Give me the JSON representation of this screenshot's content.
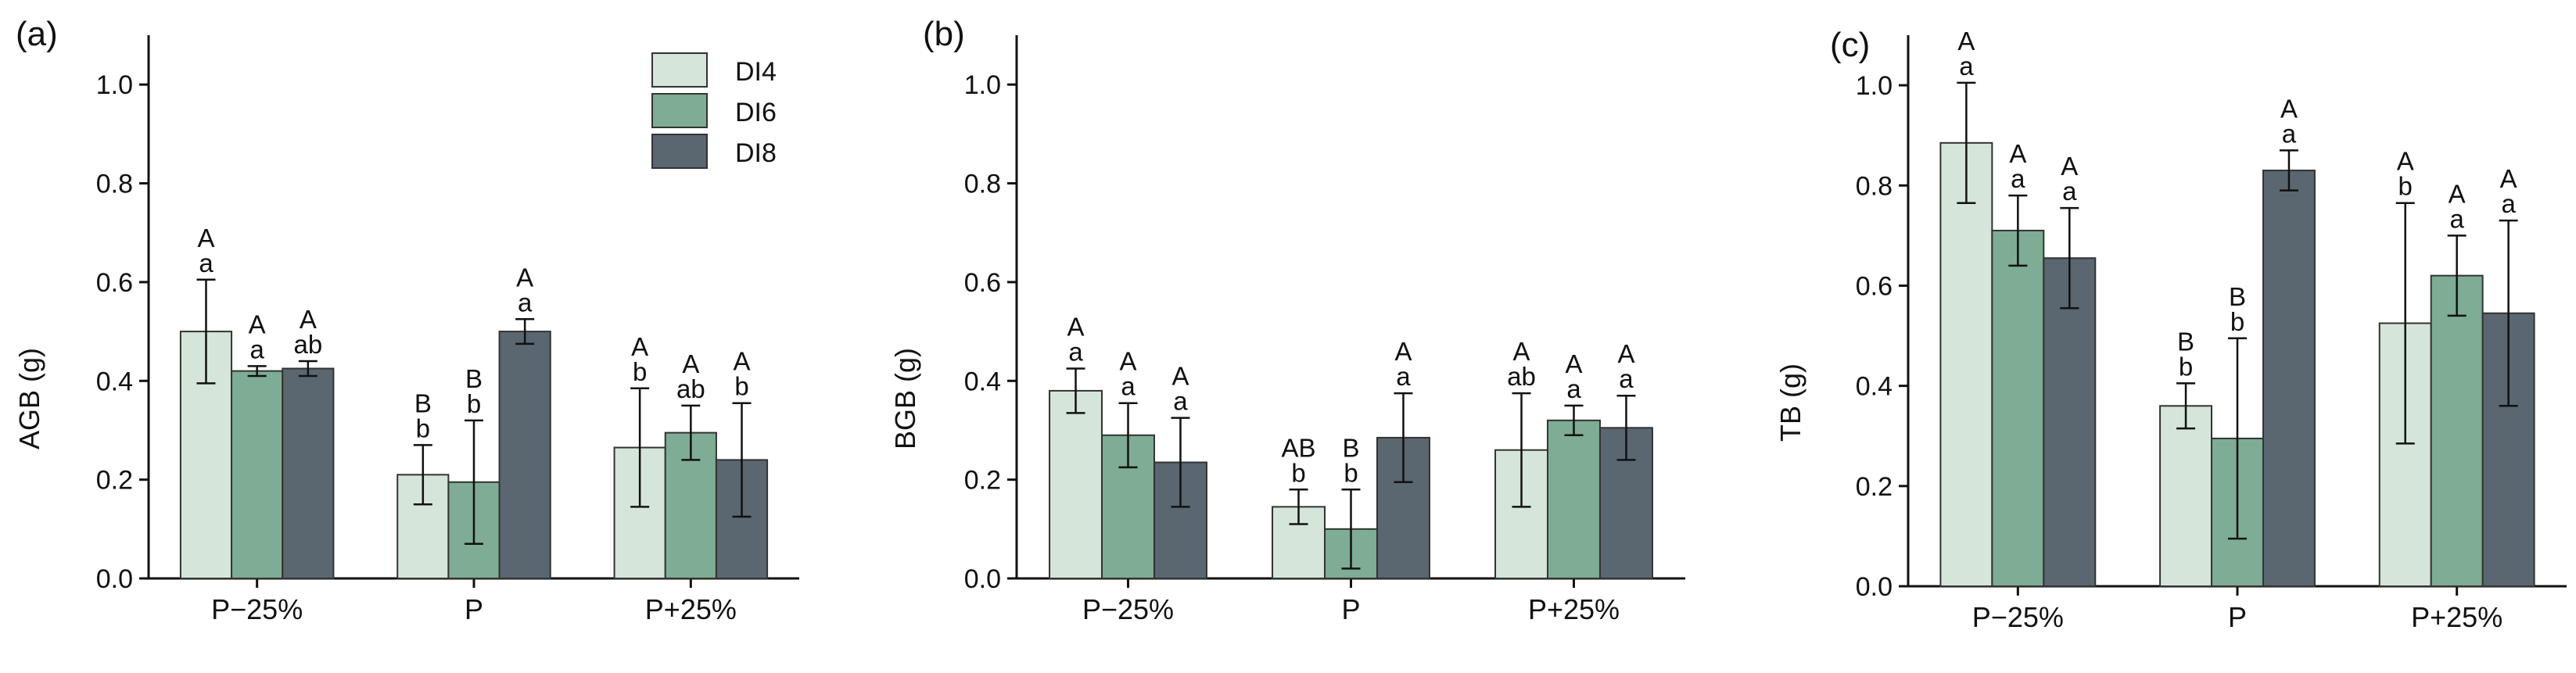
{
  "colors": {
    "DI4": "#d5e5d9",
    "DI6": "#7eac94",
    "DI8": "#5a6670"
  },
  "legend": [
    "DI4",
    "DI6",
    "DI8"
  ],
  "chart_data": [
    {
      "panel": "(a)",
      "type": "bar",
      "ylabel": "AGB (g)",
      "ylim": [
        0,
        1.1
      ],
      "yticks": [
        "0.0",
        "0.2",
        "0.4",
        "0.6",
        "0.8",
        "1.0"
      ],
      "categories": [
        "P−25%",
        "P",
        "P+25%"
      ],
      "series": [
        {
          "name": "DI4",
          "values": [
            0.5,
            0.21,
            0.265
          ],
          "errors": [
            0.105,
            0.06,
            0.12
          ],
          "labels": [
            [
              "A",
              "a"
            ],
            [
              "B",
              "b"
            ],
            [
              "A",
              "b"
            ]
          ]
        },
        {
          "name": "DI6",
          "values": [
            0.42,
            0.195,
            0.295
          ],
          "errors": [
            0.01,
            0.125,
            0.055
          ],
          "labels": [
            [
              "A",
              "a"
            ],
            [
              "B",
              "b"
            ],
            [
              "A",
              "ab"
            ]
          ]
        },
        {
          "name": "DI8",
          "values": [
            0.425,
            0.5,
            0.24
          ],
          "errors": [
            0.015,
            0.025,
            0.115
          ],
          "labels": [
            [
              "A",
              "ab"
            ],
            [
              "A",
              "a"
            ],
            [
              "A",
              "b"
            ]
          ]
        }
      ]
    },
    {
      "panel": "(b)",
      "type": "bar",
      "ylabel": "BGB (g)",
      "ylim": [
        0,
        1.1
      ],
      "yticks": [
        "0.0",
        "0.2",
        "0.4",
        "0.6",
        "0.8",
        "1.0"
      ],
      "categories": [
        "P−25%",
        "P",
        "P+25%"
      ],
      "series": [
        {
          "name": "DI4",
          "values": [
            0.38,
            0.145,
            0.26
          ],
          "errors": [
            0.045,
            0.035,
            0.115
          ],
          "labels": [
            [
              "A",
              "a"
            ],
            [
              "AB",
              "b"
            ],
            [
              "A",
              "ab"
            ]
          ]
        },
        {
          "name": "DI6",
          "values": [
            0.29,
            0.1,
            0.32
          ],
          "errors": [
            0.065,
            0.08,
            0.03
          ],
          "labels": [
            [
              "A",
              "a"
            ],
            [
              "B",
              "b"
            ],
            [
              "A",
              "a"
            ]
          ]
        },
        {
          "name": "DI8",
          "values": [
            0.235,
            0.285,
            0.305
          ],
          "errors": [
            0.09,
            0.09,
            0.065
          ],
          "labels": [
            [
              "A",
              "a"
            ],
            [
              "A",
              "a"
            ],
            [
              "A",
              "a"
            ]
          ]
        }
      ]
    },
    {
      "panel": "(c)",
      "type": "bar",
      "ylabel": "TB (g)",
      "ylim": [
        0,
        1.1
      ],
      "yticks": [
        "0.0",
        "0.2",
        "0.4",
        "0.6",
        "0.8",
        "1.0"
      ],
      "categories": [
        "P−25%",
        "P",
        "P+25%"
      ],
      "series": [
        {
          "name": "DI4",
          "values": [
            0.885,
            0.36,
            0.525
          ],
          "errors": [
            0.12,
            0.045,
            0.24
          ],
          "labels": [
            [
              "A",
              "a"
            ],
            [
              "B",
              "b"
            ],
            [
              "A",
              "b"
            ]
          ]
        },
        {
          "name": "DI6",
          "values": [
            0.71,
            0.295,
            0.62
          ],
          "errors": [
            0.07,
            0.2,
            0.08
          ],
          "labels": [
            [
              "A",
              "a"
            ],
            [
              "B",
              "b"
            ],
            [
              "A",
              "a"
            ]
          ]
        },
        {
          "name": "DI8",
          "values": [
            0.655,
            0.83,
            0.545
          ],
          "errors": [
            0.1,
            0.04,
            0.185
          ],
          "labels": [
            [
              "A",
              "a"
            ],
            [
              "A",
              "a"
            ],
            [
              "A",
              "a"
            ]
          ]
        }
      ]
    }
  ]
}
